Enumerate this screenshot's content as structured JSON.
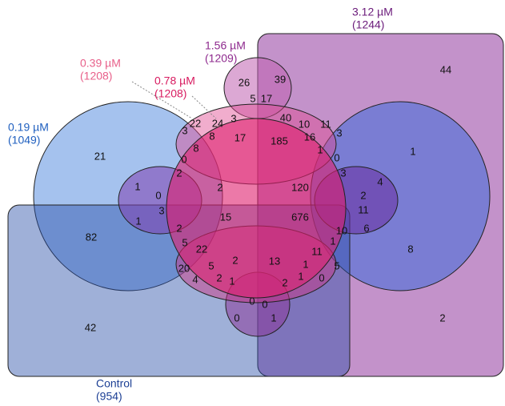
{
  "sets": [
    {
      "name": "0.19 µM",
      "size": "(1049)"
    },
    {
      "name": "0.39 µM",
      "size": "(1208)"
    },
    {
      "name": "0.78 µM",
      "size": "(1208)"
    },
    {
      "name": "1.56 µM",
      "size": "(1209)"
    },
    {
      "name": "3.12 µM",
      "size": "(1244)"
    },
    {
      "name": "Control",
      "size": "(954)"
    }
  ],
  "regions": [
    26,
    39,
    44,
    5,
    17,
    22,
    24,
    3,
    40,
    10,
    11,
    3,
    8,
    17,
    185,
    16,
    3,
    21,
    1,
    8,
    1,
    0,
    0,
    2,
    3,
    1,
    2,
    120,
    4,
    0,
    2,
    3,
    11,
    1,
    15,
    676,
    6,
    82,
    10,
    2,
    1,
    5,
    22,
    11,
    8,
    20,
    5,
    2,
    13,
    1,
    5,
    4,
    2,
    1,
    2,
    1,
    0,
    0,
    0,
    42,
    0,
    1,
    2
  ]
}
